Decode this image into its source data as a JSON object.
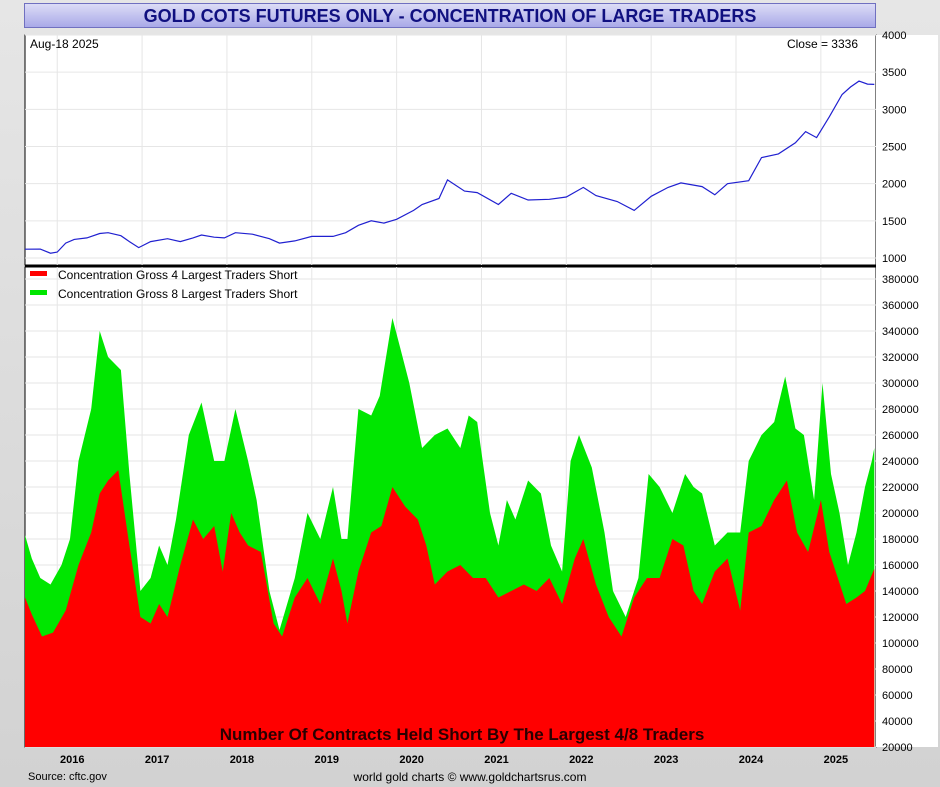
{
  "title": "GOLD COTS FUTURES ONLY - CONCENTRATION OF LARGE TRADERS",
  "date_label": "Aug-18  2025",
  "close_label": "Close = 3336",
  "footer": {
    "source": "Source: cftc.gov",
    "credit": "world gold charts © www.goldchartsrus.com"
  },
  "colors": {
    "price_line": "#2020d0",
    "top4": "#ff0000",
    "top8": "#00e600",
    "title_text": "#101080"
  },
  "chart_data": [
    {
      "type": "line",
      "panel": "price",
      "ylim": [
        1000,
        4000
      ],
      "yticks": [
        1000,
        1500,
        2000,
        2500,
        3000,
        3500,
        4000
      ],
      "grid": true,
      "series": [
        {
          "values": [
            [
              2015.62,
              1118
            ],
            [
              2015.8,
              1120
            ],
            [
              2015.92,
              1065
            ],
            [
              2016.0,
              1080
            ],
            [
              2016.1,
              1200
            ],
            [
              2016.2,
              1250
            ],
            [
              2016.35,
              1270
            ],
            [
              2016.5,
              1330
            ],
            [
              2016.6,
              1340
            ],
            [
              2016.75,
              1300
            ],
            [
              2016.85,
              1220
            ],
            [
              2016.96,
              1140
            ],
            [
              2017.1,
              1220
            ],
            [
              2017.3,
              1260
            ],
            [
              2017.45,
              1220
            ],
            [
              2017.6,
              1270
            ],
            [
              2017.7,
              1310
            ],
            [
              2017.85,
              1280
            ],
            [
              2017.97,
              1270
            ],
            [
              2018.1,
              1340
            ],
            [
              2018.3,
              1320
            ],
            [
              2018.5,
              1260
            ],
            [
              2018.62,
              1200
            ],
            [
              2018.8,
              1230
            ],
            [
              2019.0,
              1290
            ],
            [
              2019.25,
              1290
            ],
            [
              2019.4,
              1340
            ],
            [
              2019.55,
              1440
            ],
            [
              2019.7,
              1500
            ],
            [
              2019.85,
              1470
            ],
            [
              2020.0,
              1520
            ],
            [
              2020.2,
              1640
            ],
            [
              2020.3,
              1720
            ],
            [
              2020.5,
              1800
            ],
            [
              2020.6,
              2050
            ],
            [
              2020.8,
              1900
            ],
            [
              2020.95,
              1880
            ],
            [
              2021.2,
              1720
            ],
            [
              2021.35,
              1870
            ],
            [
              2021.55,
              1780
            ],
            [
              2021.8,
              1790
            ],
            [
              2022.0,
              1820
            ],
            [
              2022.2,
              1950
            ],
            [
              2022.35,
              1840
            ],
            [
              2022.6,
              1760
            ],
            [
              2022.8,
              1640
            ],
            [
              2023.0,
              1830
            ],
            [
              2023.2,
              1950
            ],
            [
              2023.35,
              2010
            ],
            [
              2023.6,
              1960
            ],
            [
              2023.75,
              1850
            ],
            [
              2023.9,
              2000
            ],
            [
              2024.15,
              2040
            ],
            [
              2024.3,
              2350
            ],
            [
              2024.5,
              2400
            ],
            [
              2024.7,
              2550
            ],
            [
              2024.82,
              2700
            ],
            [
              2024.95,
              2620
            ],
            [
              2025.1,
              2900
            ],
            [
              2025.25,
              3200
            ],
            [
              2025.35,
              3300
            ],
            [
              2025.45,
              3380
            ],
            [
              2025.55,
              3340
            ],
            [
              2025.63,
              3336
            ]
          ]
        }
      ]
    },
    {
      "type": "area",
      "panel": "concentration",
      "title": "Number Of Contracts Held Short By The Largest 4/8 Traders",
      "ylim": [
        20000,
        380000
      ],
      "yticks": [
        20000,
        40000,
        60000,
        80000,
        100000,
        120000,
        140000,
        160000,
        180000,
        200000,
        220000,
        240000,
        260000,
        280000,
        300000,
        320000,
        340000,
        360000,
        380000
      ],
      "xticks": [
        "2016",
        "2017",
        "2018",
        "2019",
        "2020",
        "2021",
        "2022",
        "2023",
        "2024",
        "2025"
      ],
      "xlim": [
        2015.62,
        2025.65
      ],
      "grid": true,
      "legend": "top-left",
      "series": [
        {
          "name": "Concentration Gross 8 Largest Traders Short",
          "values": [
            [
              2015.62,
              183000
            ],
            [
              2015.7,
              165000
            ],
            [
              2015.8,
              150000
            ],
            [
              2015.92,
              145000
            ],
            [
              2016.05,
              160000
            ],
            [
              2016.15,
              180000
            ],
            [
              2016.25,
              240000
            ],
            [
              2016.4,
              280000
            ],
            [
              2016.5,
              340000
            ],
            [
              2016.6,
              320000
            ],
            [
              2016.75,
              310000
            ],
            [
              2016.85,
              230000
            ],
            [
              2016.98,
              140000
            ],
            [
              2017.1,
              150000
            ],
            [
              2017.2,
              175000
            ],
            [
              2017.3,
              160000
            ],
            [
              2017.4,
              195000
            ],
            [
              2017.55,
              260000
            ],
            [
              2017.7,
              285000
            ],
            [
              2017.85,
              240000
            ],
            [
              2017.97,
              240000
            ],
            [
              2018.1,
              280000
            ],
            [
              2018.25,
              240000
            ],
            [
              2018.35,
              210000
            ],
            [
              2018.5,
              140000
            ],
            [
              2018.62,
              110000
            ],
            [
              2018.8,
              150000
            ],
            [
              2018.95,
              200000
            ],
            [
              2019.1,
              180000
            ],
            [
              2019.25,
              220000
            ],
            [
              2019.35,
              180000
            ],
            [
              2019.42,
              180000
            ],
            [
              2019.55,
              280000
            ],
            [
              2019.7,
              275000
            ],
            [
              2019.8,
              290000
            ],
            [
              2019.95,
              350000
            ],
            [
              2020.05,
              325000
            ],
            [
              2020.15,
              300000
            ],
            [
              2020.3,
              250000
            ],
            [
              2020.45,
              260000
            ],
            [
              2020.6,
              265000
            ],
            [
              2020.75,
              250000
            ],
            [
              2020.85,
              275000
            ],
            [
              2020.95,
              270000
            ],
            [
              2021.1,
              200000
            ],
            [
              2021.2,
              175000
            ],
            [
              2021.3,
              210000
            ],
            [
              2021.4,
              195000
            ],
            [
              2021.55,
              225000
            ],
            [
              2021.7,
              215000
            ],
            [
              2021.82,
              175000
            ],
            [
              2021.95,
              155000
            ],
            [
              2022.05,
              240000
            ],
            [
              2022.15,
              260000
            ],
            [
              2022.3,
              235000
            ],
            [
              2022.45,
              185000
            ],
            [
              2022.55,
              140000
            ],
            [
              2022.7,
              120000
            ],
            [
              2022.85,
              150000
            ],
            [
              2022.97,
              230000
            ],
            [
              2023.1,
              220000
            ],
            [
              2023.25,
              200000
            ],
            [
              2023.4,
              230000
            ],
            [
              2023.5,
              220000
            ],
            [
              2023.6,
              215000
            ],
            [
              2023.75,
              175000
            ],
            [
              2023.9,
              185000
            ],
            [
              2024.05,
              185000
            ],
            [
              2024.15,
              240000
            ],
            [
              2024.3,
              260000
            ],
            [
              2024.45,
              270000
            ],
            [
              2024.58,
              305000
            ],
            [
              2024.7,
              265000
            ],
            [
              2024.8,
              260000
            ],
            [
              2024.92,
              210000
            ],
            [
              2025.02,
              300000
            ],
            [
              2025.12,
              230000
            ],
            [
              2025.22,
              200000
            ],
            [
              2025.32,
              160000
            ],
            [
              2025.42,
              185000
            ],
            [
              2025.52,
              220000
            ],
            [
              2025.6,
              240000
            ],
            [
              2025.63,
              250000
            ]
          ]
        },
        {
          "name": "Concentration Gross 4 Largest Traders Short",
          "values": [
            [
              2015.62,
              135000
            ],
            [
              2015.7,
              122000
            ],
            [
              2015.82,
              105000
            ],
            [
              2015.95,
              108000
            ],
            [
              2016.1,
              125000
            ],
            [
              2016.25,
              160000
            ],
            [
              2016.4,
              185000
            ],
            [
              2016.5,
              215000
            ],
            [
              2016.6,
              225000
            ],
            [
              2016.72,
              233000
            ],
            [
              2016.85,
              175000
            ],
            [
              2016.98,
              120000
            ],
            [
              2017.1,
              115000
            ],
            [
              2017.2,
              130000
            ],
            [
              2017.3,
              120000
            ],
            [
              2017.45,
              160000
            ],
            [
              2017.6,
              195000
            ],
            [
              2017.72,
              180000
            ],
            [
              2017.85,
              190000
            ],
            [
              2017.95,
              155000
            ],
            [
              2018.05,
              200000
            ],
            [
              2018.15,
              185000
            ],
            [
              2018.25,
              175000
            ],
            [
              2018.4,
              170000
            ],
            [
              2018.55,
              115000
            ],
            [
              2018.65,
              105000
            ],
            [
              2018.8,
              135000
            ],
            [
              2018.95,
              150000
            ],
            [
              2019.1,
              130000
            ],
            [
              2019.25,
              165000
            ],
            [
              2019.35,
              140000
            ],
            [
              2019.42,
              115000
            ],
            [
              2019.55,
              155000
            ],
            [
              2019.7,
              185000
            ],
            [
              2019.82,
              190000
            ],
            [
              2019.95,
              220000
            ],
            [
              2020.1,
              205000
            ],
            [
              2020.25,
              195000
            ],
            [
              2020.35,
              175000
            ],
            [
              2020.45,
              145000
            ],
            [
              2020.6,
              155000
            ],
            [
              2020.75,
              160000
            ],
            [
              2020.9,
              150000
            ],
            [
              2021.05,
              150000
            ],
            [
              2021.2,
              135000
            ],
            [
              2021.35,
              140000
            ],
            [
              2021.5,
              145000
            ],
            [
              2021.65,
              140000
            ],
            [
              2021.8,
              150000
            ],
            [
              2021.95,
              130000
            ],
            [
              2022.1,
              165000
            ],
            [
              2022.2,
              180000
            ],
            [
              2022.35,
              145000
            ],
            [
              2022.5,
              120000
            ],
            [
              2022.65,
              105000
            ],
            [
              2022.8,
              135000
            ],
            [
              2022.95,
              150000
            ],
            [
              2023.1,
              150000
            ],
            [
              2023.25,
              180000
            ],
            [
              2023.38,
              175000
            ],
            [
              2023.5,
              140000
            ],
            [
              2023.6,
              130000
            ],
            [
              2023.75,
              155000
            ],
            [
              2023.9,
              165000
            ],
            [
              2024.05,
              125000
            ],
            [
              2024.15,
              185000
            ],
            [
              2024.3,
              190000
            ],
            [
              2024.45,
              210000
            ],
            [
              2024.6,
              225000
            ],
            [
              2024.72,
              185000
            ],
            [
              2024.85,
              170000
            ],
            [
              2025.0,
              210000
            ],
            [
              2025.1,
              170000
            ],
            [
              2025.2,
              150000
            ],
            [
              2025.3,
              130000
            ],
            [
              2025.42,
              135000
            ],
            [
              2025.52,
              140000
            ],
            [
              2025.63,
              157000
            ]
          ]
        }
      ]
    }
  ]
}
